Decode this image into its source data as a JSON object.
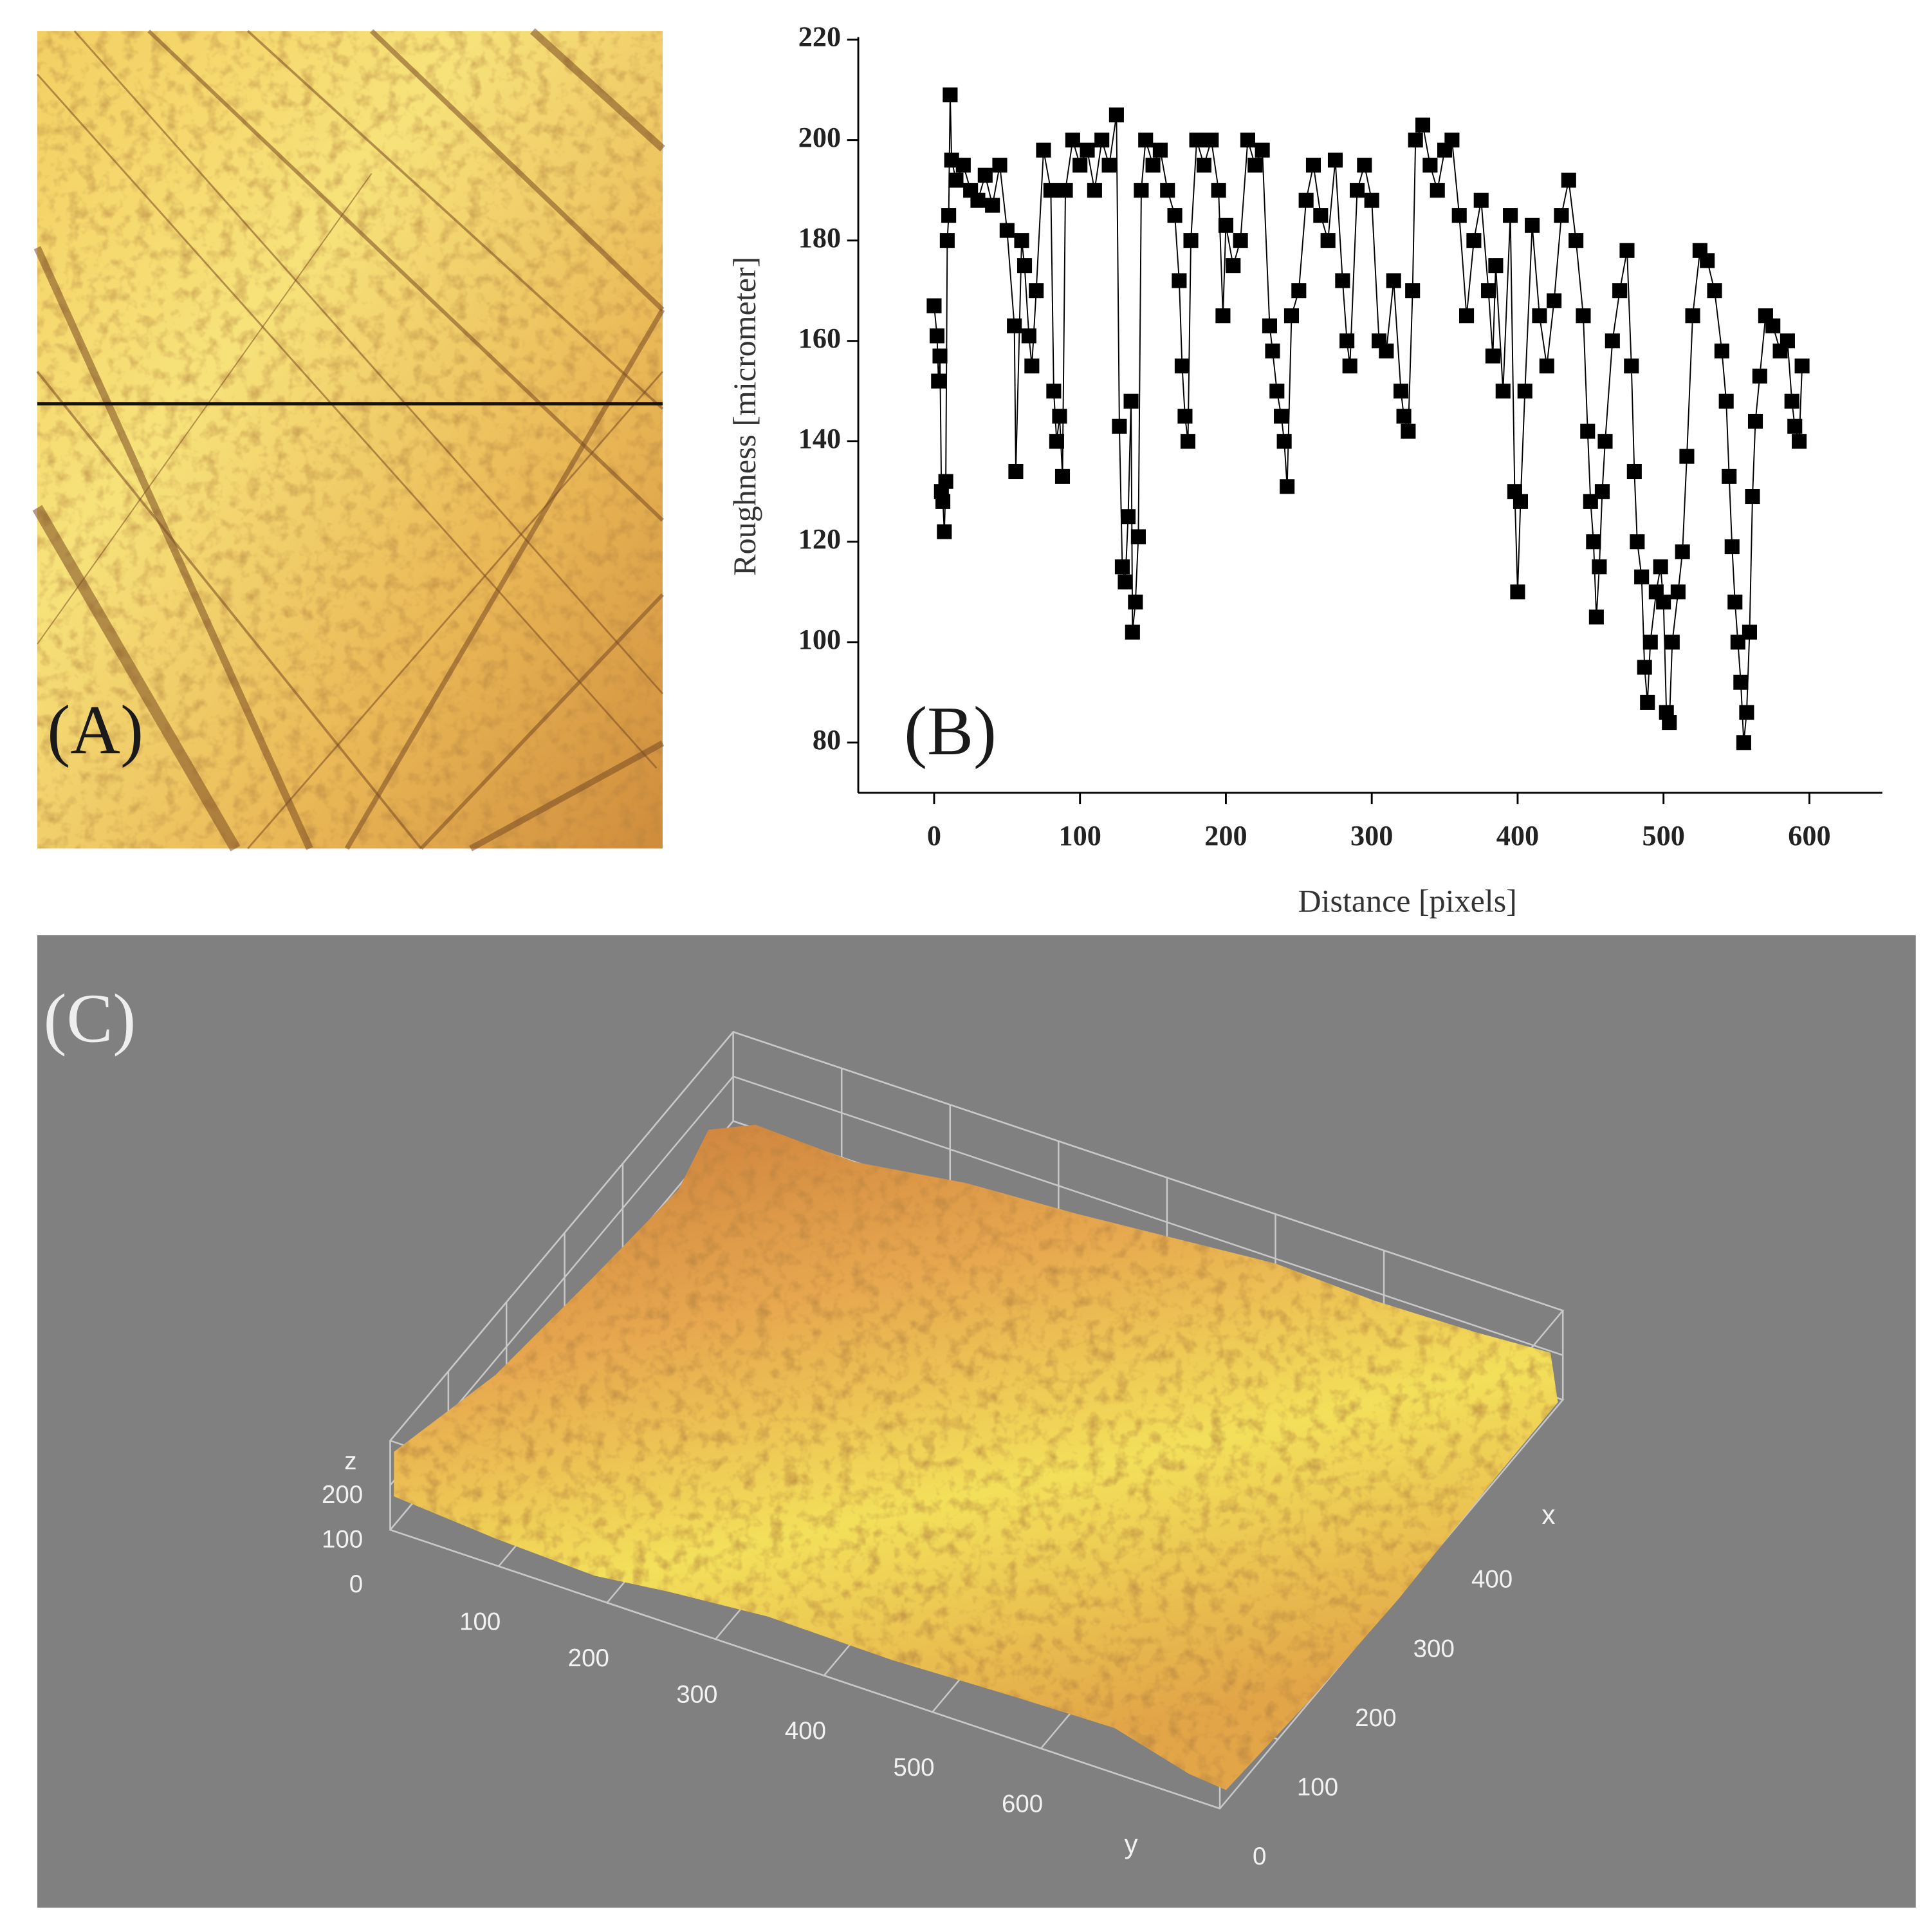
{
  "panel_a": {
    "label": "(A)"
  },
  "chart_data": [
    {
      "type": "line",
      "label": "(B)",
      "xlabel": "Distance [pixels]",
      "ylabel": "Roughness [micrometer]",
      "marker": "square",
      "x": [
        0,
        2,
        3,
        4,
        5,
        6,
        7,
        8,
        9,
        10,
        11,
        12,
        15,
        20,
        25,
        30,
        35,
        40,
        45,
        50,
        55,
        56,
        60,
        62,
        65,
        67,
        70,
        75,
        80,
        82,
        84,
        86,
        88,
        90,
        95,
        100,
        105,
        110,
        115,
        120,
        125,
        127,
        129,
        131,
        133,
        135,
        136,
        138,
        140,
        142,
        145,
        150,
        155,
        160,
        165,
        168,
        170,
        172,
        174,
        176,
        180,
        185,
        190,
        195,
        198,
        200,
        205,
        210,
        215,
        220,
        225,
        230,
        232,
        235,
        238,
        240,
        242,
        245,
        250,
        255,
        260,
        265,
        270,
        275,
        280,
        283,
        285,
        290,
        295,
        300,
        305,
        310,
        315,
        320,
        322,
        325,
        328,
        330,
        335,
        340,
        345,
        350,
        355,
        360,
        365,
        370,
        375,
        380,
        383,
        385,
        390,
        395,
        398,
        400,
        402,
        405,
        410,
        415,
        420,
        425,
        430,
        435,
        440,
        445,
        448,
        450,
        452,
        454,
        456,
        458,
        460,
        465,
        470,
        475,
        478,
        480,
        482,
        485,
        487,
        489,
        491,
        495,
        498,
        500,
        502,
        504,
        506,
        510,
        513,
        516,
        520,
        525,
        530,
        535,
        540,
        543,
        545,
        547,
        549,
        551,
        553,
        555,
        557,
        559,
        561,
        563,
        566,
        570,
        575,
        580,
        585,
        588,
        590,
        593,
        595
      ],
      "series": [
        {
          "color": "#000000",
          "values": [
            167,
            161,
            152,
            157,
            130,
            128,
            122,
            132,
            180,
            185,
            209,
            196,
            192,
            195,
            190,
            188,
            193,
            187,
            195,
            182,
            163,
            134,
            180,
            175,
            161,
            155,
            170,
            198,
            190,
            150,
            140,
            145,
            133,
            190,
            200,
            195,
            198,
            190,
            200,
            195,
            205,
            143,
            115,
            112,
            125,
            148,
            102,
            108,
            121,
            190,
            200,
            195,
            198,
            190,
            185,
            172,
            155,
            145,
            140,
            180,
            200,
            195,
            200,
            190,
            165,
            183,
            175,
            180,
            200,
            195,
            198,
            163,
            158,
            150,
            145,
            140,
            131,
            165,
            170,
            188,
            195,
            185,
            180,
            196,
            172,
            160,
            155,
            190,
            195,
            188,
            160,
            158,
            172,
            150,
            145,
            142,
            170,
            200,
            203,
            195,
            190,
            198,
            200,
            185,
            165,
            180,
            188,
            170,
            157,
            175,
            150,
            185,
            130,
            110,
            128,
            150,
            183,
            165,
            155,
            168,
            185,
            192,
            180,
            165,
            142,
            128,
            120,
            105,
            115,
            130,
            140,
            160,
            170,
            178,
            155,
            134,
            120,
            113,
            95,
            88,
            100,
            110,
            115,
            108,
            86,
            84,
            100,
            110,
            118,
            137,
            165,
            178,
            176,
            170,
            158,
            148,
            133,
            119,
            108,
            100,
            92,
            80,
            86,
            102,
            129,
            144,
            153,
            165,
            163,
            158,
            160,
            148,
            143,
            140,
            155
          ]
        }
      ],
      "xlim": [
        -52,
        650
      ],
      "ylim": [
        70,
        220
      ],
      "xticks": [
        0,
        100,
        200,
        300,
        400,
        500,
        600
      ],
      "yticks": [
        80,
        100,
        120,
        140,
        160,
        180,
        200,
        220
      ]
    },
    {
      "type": "surface3d",
      "label": "(C)",
      "xlabel": "x",
      "ylabel": "y",
      "zlabel": "z",
      "background": "#808080",
      "xlim": [
        0,
        590
      ],
      "ylim": [
        0,
        765
      ],
      "zlim": [
        0,
        200
      ],
      "xticks": [
        0,
        100,
        200,
        300,
        400
      ],
      "yticks": [
        100,
        200,
        300,
        400,
        500,
        600
      ],
      "zticks": [
        0,
        100,
        200
      ]
    }
  ]
}
